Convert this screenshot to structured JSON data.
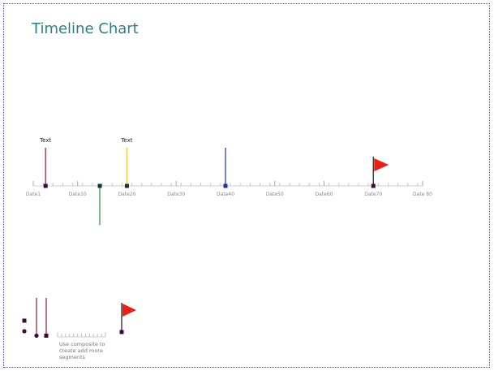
{
  "title": "Timeline Chart",
  "timeline": {
    "start": 1,
    "end": 80,
    "minor_step": 2,
    "labels": [
      {
        "value": 1,
        "text": "Date1"
      },
      {
        "value": 10,
        "text": "Date10"
      },
      {
        "value": 20,
        "text": "Date20"
      },
      {
        "value": 30,
        "text": "Date30"
      },
      {
        "value": 40,
        "text": "Date40"
      },
      {
        "value": 50,
        "text": "Date50"
      },
      {
        "value": 60,
        "text": "Date60"
      },
      {
        "value": 70,
        "text": "Date70"
      },
      {
        "value": 80,
        "text": "Date 80"
      }
    ],
    "events": [
      {
        "value": 3.5,
        "direction": "up",
        "color": "#8b1a3a",
        "marker": "#3a0a3a",
        "label": "Text"
      },
      {
        "value": 14.5,
        "direction": "down",
        "color": "#2e8b3a",
        "marker": "#0a3a2a",
        "label": ""
      },
      {
        "value": 20,
        "direction": "up",
        "color": "#f2c233",
        "marker": "#2a2a2a",
        "label": "Text"
      },
      {
        "value": 40,
        "direction": "up",
        "color": "#1e2ea8",
        "marker": "#1e2ea8",
        "label": ""
      },
      {
        "value": 70,
        "direction": "flag",
        "color": "#111111",
        "marker": "#3a0a3a",
        "flag_color": "#f01e10",
        "label": ""
      }
    ]
  },
  "legend": {
    "note_lines": [
      "Use composite to",
      "create add more",
      "segments"
    ],
    "marker_color": "#3a0a3a",
    "line_color": "#8b1a3a",
    "flag_color": "#f01e10"
  }
}
